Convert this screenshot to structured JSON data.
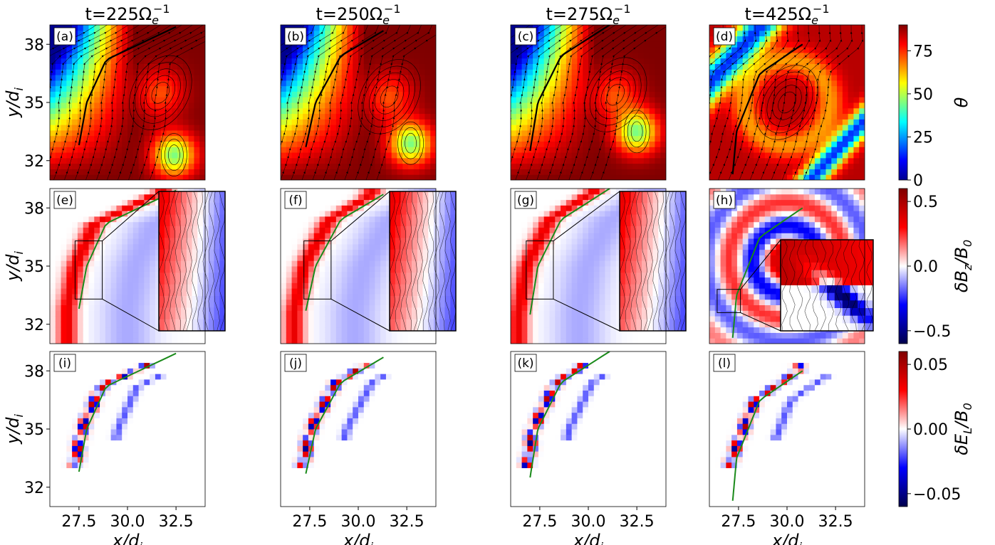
{
  "chart_data": {
    "type": "heatmap",
    "column_titles": [
      {
        "prefix": "t=",
        "value": "225",
        "unit": "Ω",
        "sub": "e",
        "sup": "−1"
      },
      {
        "prefix": "t=",
        "value": "250",
        "unit": "Ω",
        "sub": "e",
        "sup": "−1"
      },
      {
        "prefix": "t=",
        "value": "275",
        "unit": "Ω",
        "sub": "e",
        "sup": "−1"
      },
      {
        "prefix": "t=",
        "value": "425",
        "unit": "Ω",
        "sub": "e",
        "sup": "−1"
      }
    ],
    "panel_labels": [
      "(a)",
      "(b)",
      "(c)",
      "(d)",
      "(e)",
      "(f)",
      "(g)",
      "(h)",
      "(i)",
      "(j)",
      "(k)",
      "(l)"
    ],
    "xlabel": {
      "base": "x/d",
      "sub": "i"
    },
    "ylabel": {
      "base": "y/d",
      "sub": "i"
    },
    "xticks": [
      27.5,
      30.0,
      32.5
    ],
    "xtick_labels": [
      "27.5",
      "30.0",
      "32.5"
    ],
    "yticks": [
      32,
      35,
      38
    ],
    "ytick_labels": [
      "32",
      "35",
      "38"
    ],
    "xlim": [
      26.0,
      34.0
    ],
    "ylim": [
      31.0,
      39.0
    ],
    "rows": [
      {
        "quantity": "theta",
        "colorbar_label": {
          "text": "θ"
        },
        "colorbar_ticks": [
          0,
          25,
          50,
          75
        ],
        "colorbar_tick_labels": [
          "0",
          "25",
          "50",
          "75"
        ],
        "vmin": 0,
        "vmax": 90,
        "colormap": "jet"
      },
      {
        "quantity": "dBz",
        "colorbar_label": {
          "pre": "δB",
          "sub1": "z",
          "mid": "/B",
          "sub2": "0"
        },
        "colorbar_ticks": [
          0.5,
          0.0,
          -0.5
        ],
        "colorbar_tick_labels": [
          "0.5",
          "0.0",
          "−0.5"
        ],
        "vmin": -0.6,
        "vmax": 0.6,
        "colormap": "seismic"
      },
      {
        "quantity": "dEL",
        "colorbar_label": {
          "pre": "δE",
          "sub1": "L",
          "mid": "/B",
          "sub2": "0"
        },
        "colorbar_ticks": [
          0.05,
          0.0,
          -0.05
        ],
        "colorbar_tick_labels": [
          "0.05",
          "0.00",
          "−0.05"
        ],
        "vmin": -0.06,
        "vmax": 0.06,
        "colormap": "seismic"
      }
    ],
    "field_lines": [
      {
        "panel": "t=225",
        "points": [
          [
            27.5,
            32.8
          ],
          [
            27.9,
            35.0
          ],
          [
            28.9,
            37.2
          ],
          [
            32.5,
            38.9
          ]
        ]
      },
      {
        "panel": "t=250",
        "points": [
          [
            27.3,
            32.7
          ],
          [
            27.8,
            35.0
          ],
          [
            29.1,
            37.4
          ],
          [
            31.3,
            38.7
          ]
        ]
      },
      {
        "panel": "t=275",
        "points": [
          [
            27.0,
            32.5
          ],
          [
            27.4,
            35.0
          ],
          [
            28.6,
            37.4
          ],
          [
            31.1,
            39.0
          ]
        ]
      },
      {
        "panel": "t=425",
        "points": [
          [
            27.2,
            31.3
          ],
          [
            27.4,
            33.5
          ],
          [
            28.6,
            36.5
          ],
          [
            30.8,
            38.0
          ]
        ]
      }
    ],
    "inset_source_boxes": [
      {
        "panel": "(e)",
        "x": [
          27.3,
          28.7
        ],
        "y": [
          33.3,
          36.3
        ]
      },
      {
        "panel": "(f)",
        "x": [
          27.2,
          28.6
        ],
        "y": [
          33.3,
          36.3
        ]
      },
      {
        "panel": "(g)",
        "x": [
          26.8,
          28.2
        ],
        "y": [
          33.3,
          36.3
        ]
      },
      {
        "panel": "(h)",
        "x": [
          26.4,
          27.6
        ],
        "y": [
          32.6,
          33.8
        ]
      }
    ],
    "vortex_centers": [
      {
        "x": 31.7,
        "y": 35.5,
        "x2": 32.4,
        "y2": 32.3
      },
      {
        "x": 31.6,
        "y": 35.3,
        "x2": 32.7,
        "y2": 32.9
      },
      {
        "x": 31.4,
        "y": 35.4,
        "x2": 32.5,
        "y2": 33.5
      },
      {
        "x": 30.0,
        "y": 35.0,
        "x2": 30.0,
        "y2": 35.0
      }
    ]
  }
}
